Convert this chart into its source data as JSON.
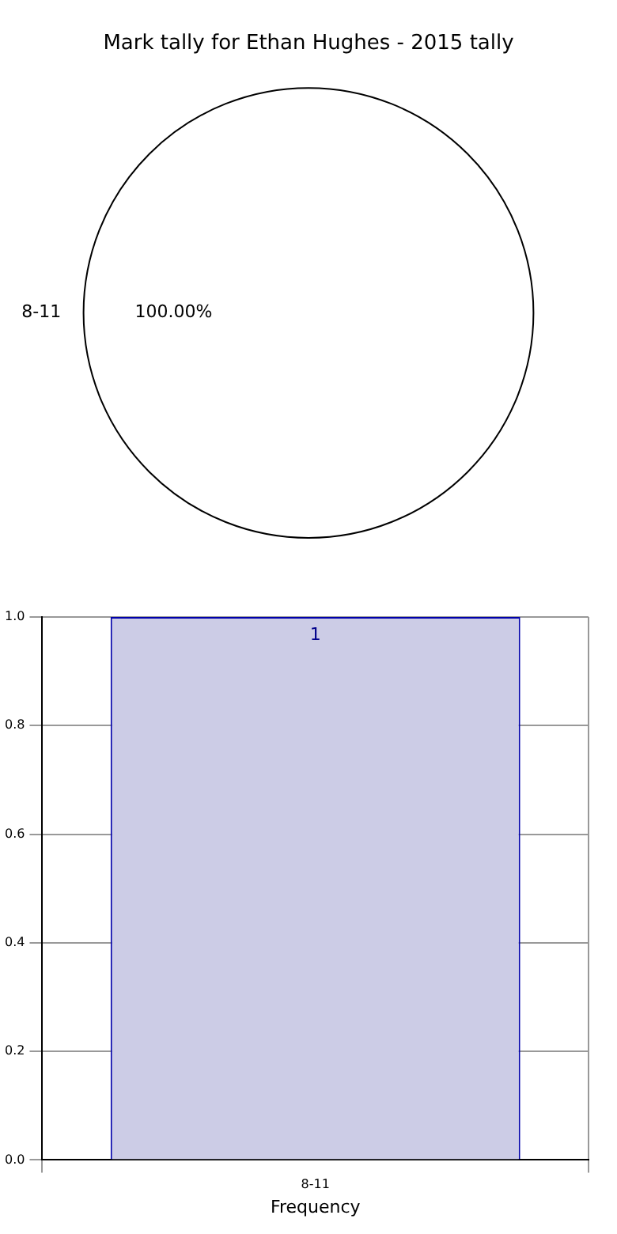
{
  "chart_data": [
    {
      "type": "pie",
      "title": "Mark tally for Ethan Hughes - 2015 tally",
      "categories": [
        "8-11"
      ],
      "values": [
        100
      ],
      "colors": [
        "#ffffff"
      ],
      "value_labels": [
        "100.00%"
      ],
      "legend": false
    },
    {
      "type": "bar",
      "categories": [
        "8-11"
      ],
      "values": [
        1
      ],
      "color": "#ccccE6",
      "xlabel": "Frequency",
      "ylim": [
        0,
        1
      ],
      "yticks": [
        {
          "value": 0,
          "label": "0.0"
        },
        {
          "value": 0.2,
          "label": "0.2"
        },
        {
          "value": 0.4,
          "label": "0.4"
        },
        {
          "value": 0.6,
          "label": "0.6"
        },
        {
          "value": 0.8,
          "label": "0.8"
        },
        {
          "value": 1,
          "label": "1.0"
        }
      ],
      "grid": true,
      "data_labels": true,
      "legend": false
    }
  ]
}
